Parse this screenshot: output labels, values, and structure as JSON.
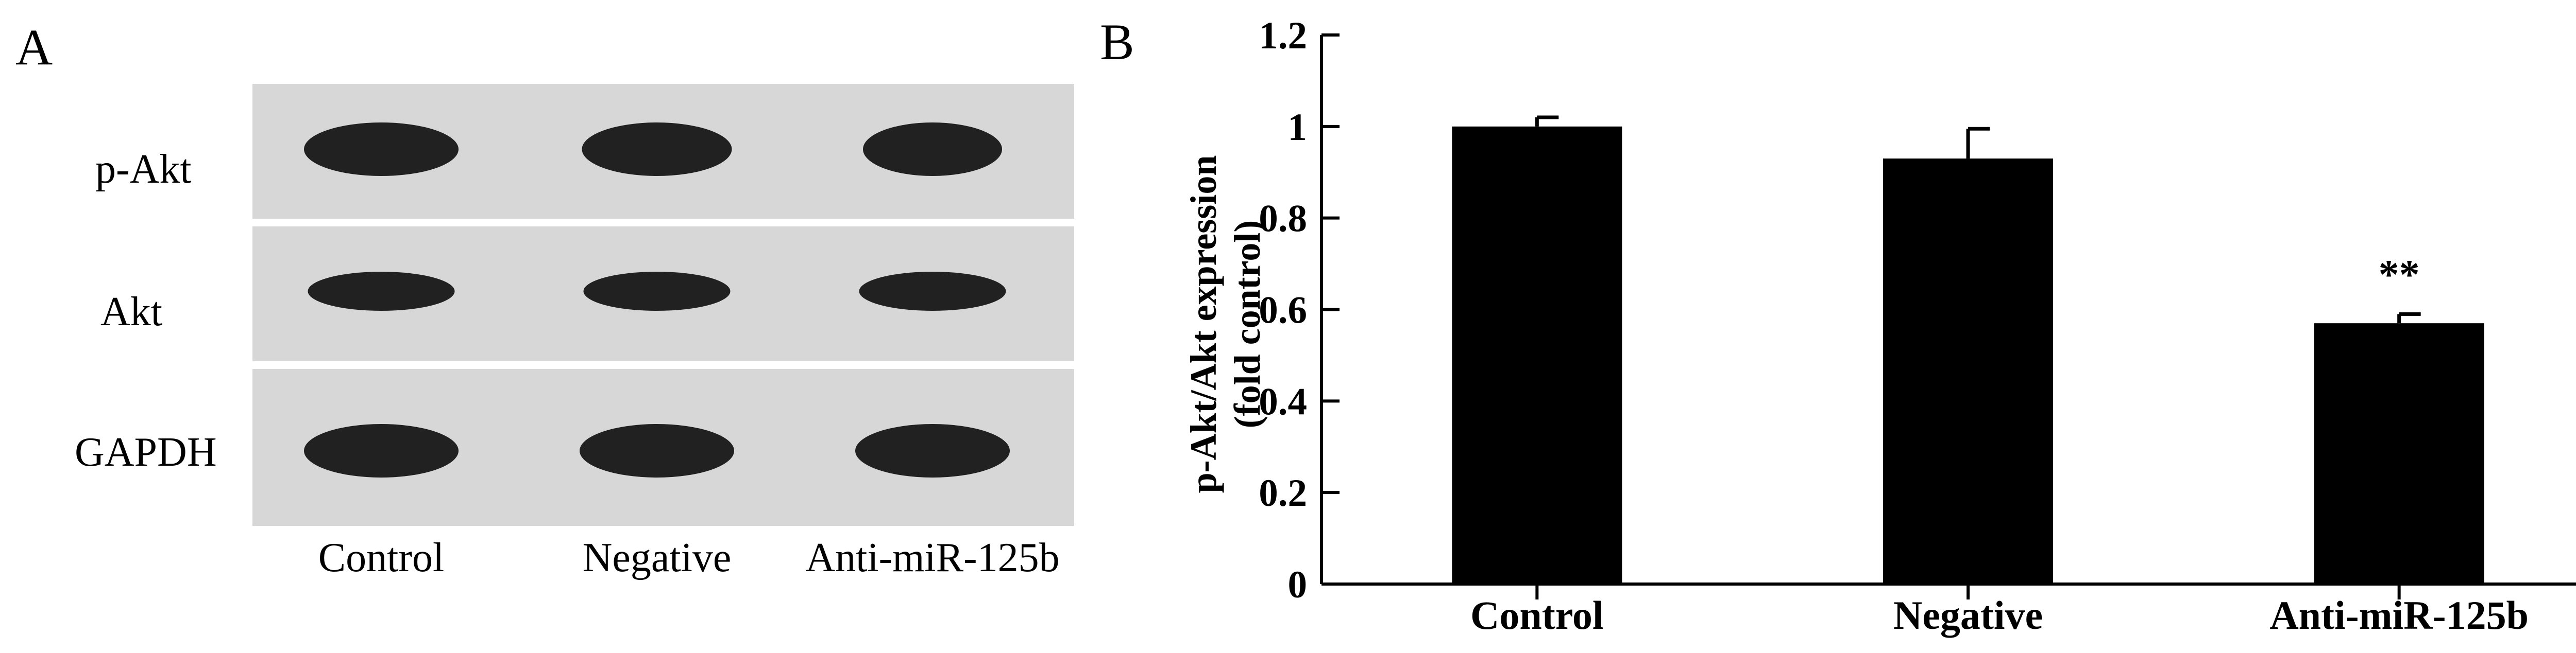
{
  "panel_a": {
    "letter": "A",
    "rows": [
      {
        "label": "p-Akt",
        "band_intensity": [
          1.0,
          0.97,
          0.9
        ]
      },
      {
        "label": "Akt",
        "band_intensity": [
          0.95,
          0.95,
          0.95
        ]
      },
      {
        "label": "GAPDH",
        "band_intensity": [
          1.0,
          1.0,
          1.0
        ]
      }
    ],
    "lanes": [
      "Control",
      "Negative",
      "Anti-miR-125b"
    ],
    "colors": {
      "membrane": "#d7d7d7",
      "band": "#111111",
      "separator": "#ffffff"
    }
  },
  "panel_b": {
    "letter": "B",
    "significance": "**"
  },
  "chart_data": {
    "type": "bar",
    "categories": [
      "Control",
      "Negative",
      "Anti-miR-125b"
    ],
    "values": [
      1.0,
      0.93,
      0.57
    ],
    "errors": [
      0.02,
      0.065,
      0.02
    ],
    "title": "",
    "xlabel": "",
    "ylabel_lines": [
      "p-Akt/Akt expression",
      "(fold control)"
    ],
    "ylim": [
      0,
      1.2
    ],
    "yticks": [
      "0",
      "0.2",
      "0.4",
      "0.6",
      "0.8",
      "1",
      "1.2"
    ],
    "annotations": [
      {
        "category": "Anti-miR-125b",
        "text": "**"
      }
    ],
    "grid": false,
    "bar_color": "#000000"
  }
}
